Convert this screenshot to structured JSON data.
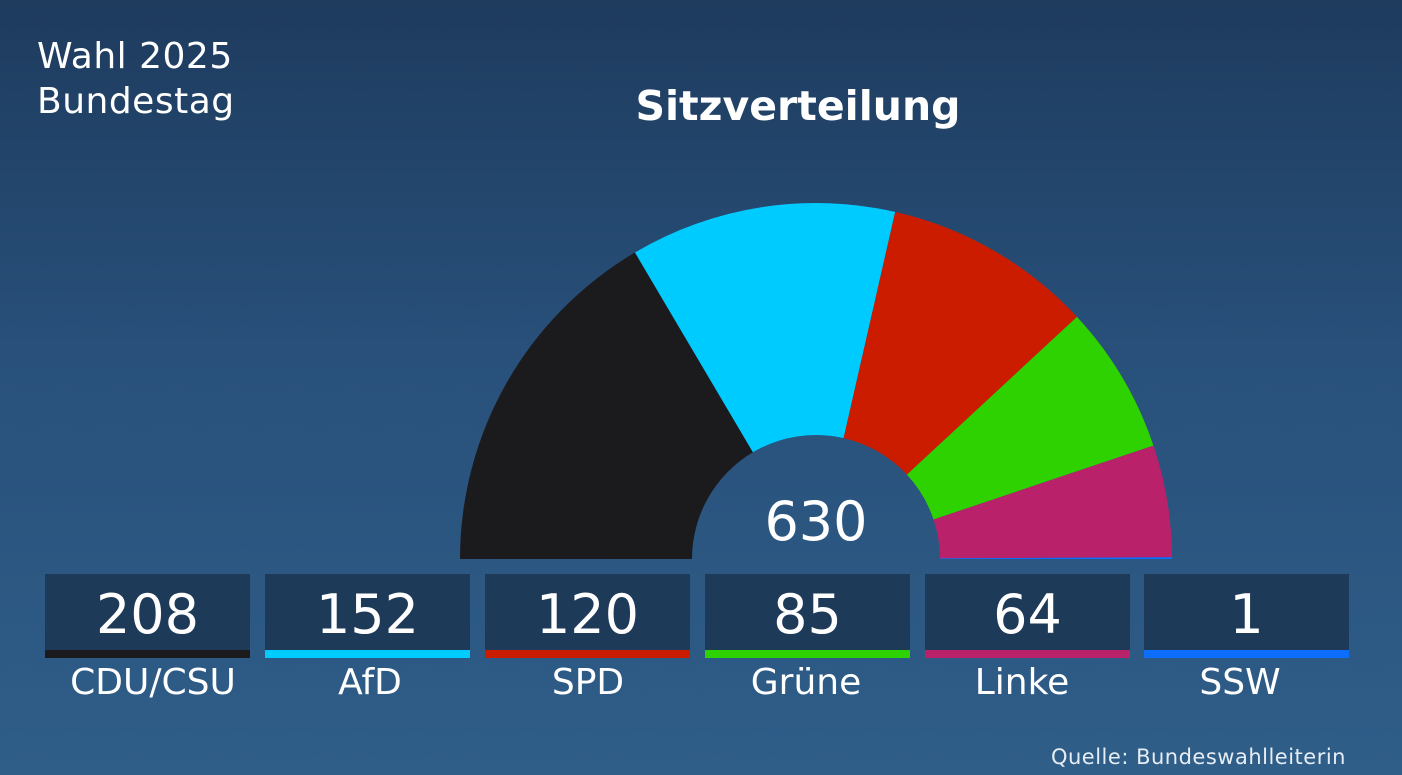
{
  "header": {
    "line1": "Wahl 2025",
    "line2": "Bundestag",
    "title": "Sitzverteilung"
  },
  "source": "Quelle: Bundeswahlleiterin",
  "chart_data": {
    "type": "pie",
    "subtype": "semicircle-parliament",
    "title": "Sitzverteilung",
    "total": 630,
    "total_label": "630",
    "categories": [
      "CDU/CSU",
      "AfD",
      "SPD",
      "Grüne",
      "Linke",
      "SSW"
    ],
    "values": [
      208,
      152,
      120,
      85,
      64,
      1
    ],
    "colors": [
      "#1b1b1d",
      "#00cbff",
      "#cc1c00",
      "#2ed200",
      "#b9226a",
      "#0d6efd"
    ],
    "legend_placement": "bottom"
  },
  "parties": [
    {
      "name": "CDU/CSU",
      "seats": "208",
      "color": "#1b1b1d"
    },
    {
      "name": "AfD",
      "seats": "152",
      "color": "#00cbff"
    },
    {
      "name": "SPD",
      "seats": "120",
      "color": "#cc1c00"
    },
    {
      "name": "Grüne",
      "seats": "85",
      "color": "#2ed200"
    },
    {
      "name": "Linke",
      "seats": "64",
      "color": "#b9226a"
    },
    {
      "name": "SSW",
      "seats": "1",
      "color": "#0d6efd"
    }
  ]
}
